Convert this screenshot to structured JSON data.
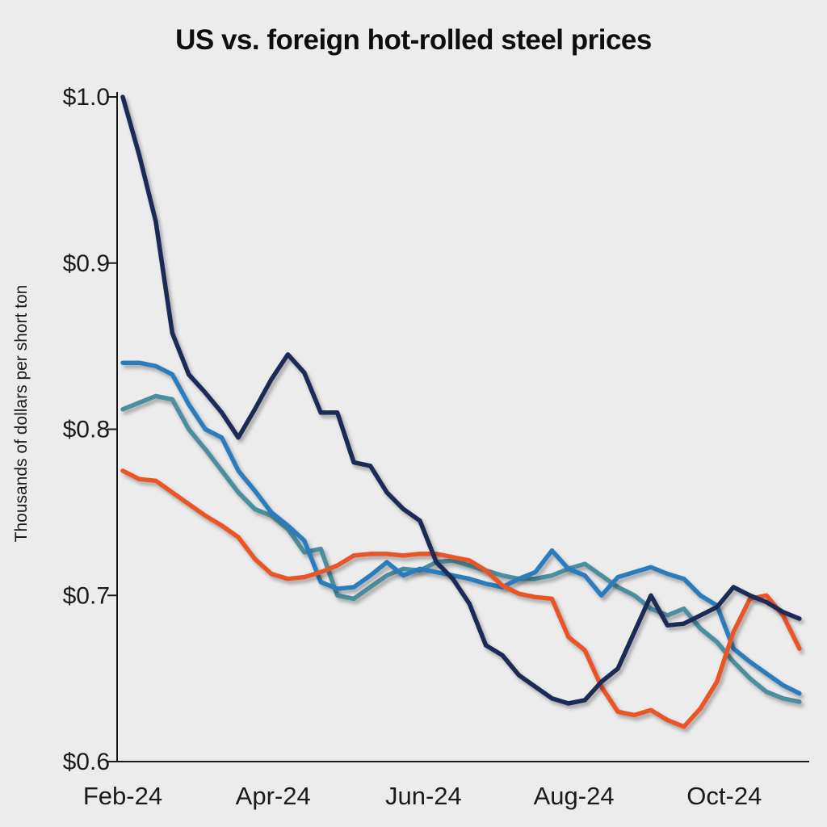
{
  "chart_data": {
    "type": "line",
    "title": "US vs. foreign hot-rolled steel prices",
    "xlabel": "",
    "ylabel": "Thousands of dollars per short ton",
    "ylim": [
      0.6,
      1.0
    ],
    "x_months_range": [
      0,
      9
    ],
    "x_tick_months": [
      0,
      2,
      4,
      6,
      8
    ],
    "x_tick_labels": [
      "Feb-24",
      "Apr-24",
      "Jun-24",
      "Aug-24",
      "Oct-24"
    ],
    "y_tick_values": [
      1.0,
      0.9,
      0.8,
      0.7,
      0.6
    ],
    "y_tick_labels": [
      "$1.0",
      "$0.9",
      "$0.8",
      "$0.7",
      "$0.6"
    ],
    "grid": false,
    "legend": "none",
    "background_color": "#ececec",
    "axis_color": "#1a1a1a",
    "series": [
      {
        "name": "teal-line",
        "color": "#4b8e9e",
        "values": [
          0.812,
          0.816,
          0.82,
          0.818,
          0.8,
          0.788,
          0.775,
          0.762,
          0.752,
          0.748,
          0.74,
          0.726,
          0.728,
          0.7,
          0.698,
          0.705,
          0.712,
          0.716,
          0.715,
          0.72,
          0.721,
          0.718,
          0.715,
          0.712,
          0.71,
          0.71,
          0.712,
          0.716,
          0.719,
          0.712,
          0.705,
          0.7,
          0.692,
          0.688,
          0.692,
          0.68,
          0.672,
          0.66,
          0.65,
          0.642,
          0.638,
          0.636
        ]
      },
      {
        "name": "blue-line",
        "color": "#2b7cbd",
        "values": [
          0.84,
          0.84,
          0.838,
          0.833,
          0.815,
          0.8,
          0.795,
          0.775,
          0.763,
          0.75,
          0.742,
          0.733,
          0.708,
          0.704,
          0.705,
          0.712,
          0.72,
          0.712,
          0.716,
          0.714,
          0.712,
          0.71,
          0.707,
          0.705,
          0.71,
          0.714,
          0.727,
          0.716,
          0.712,
          0.7,
          0.711,
          0.714,
          0.717,
          0.713,
          0.71,
          0.7,
          0.694,
          0.668,
          0.66,
          0.653,
          0.646,
          0.641
        ]
      },
      {
        "name": "orange-line",
        "color": "#e95428",
        "values": [
          0.775,
          0.77,
          0.769,
          0.762,
          0.755,
          0.748,
          0.742,
          0.735,
          0.722,
          0.713,
          0.71,
          0.711,
          0.714,
          0.718,
          0.724,
          0.725,
          0.725,
          0.724,
          0.725,
          0.725,
          0.723,
          0.721,
          0.715,
          0.706,
          0.701,
          0.699,
          0.698,
          0.675,
          0.667,
          0.645,
          0.63,
          0.628,
          0.631,
          0.625,
          0.621,
          0.632,
          0.648,
          0.678,
          0.698,
          0.7,
          0.688,
          0.668
        ]
      },
      {
        "name": "navy-line",
        "color": "#1d2956",
        "values": [
          1.0,
          0.965,
          0.925,
          0.858,
          0.833,
          0.822,
          0.81,
          0.795,
          0.812,
          0.83,
          0.845,
          0.834,
          0.81,
          0.81,
          0.78,
          0.778,
          0.762,
          0.752,
          0.745,
          0.72,
          0.71,
          0.695,
          0.67,
          0.664,
          0.652,
          0.645,
          0.638,
          0.635,
          0.637,
          0.648,
          0.656,
          0.678,
          0.7,
          0.682,
          0.683,
          0.688,
          0.693,
          0.705,
          0.7,
          0.696,
          0.69,
          0.686
        ]
      }
    ]
  }
}
